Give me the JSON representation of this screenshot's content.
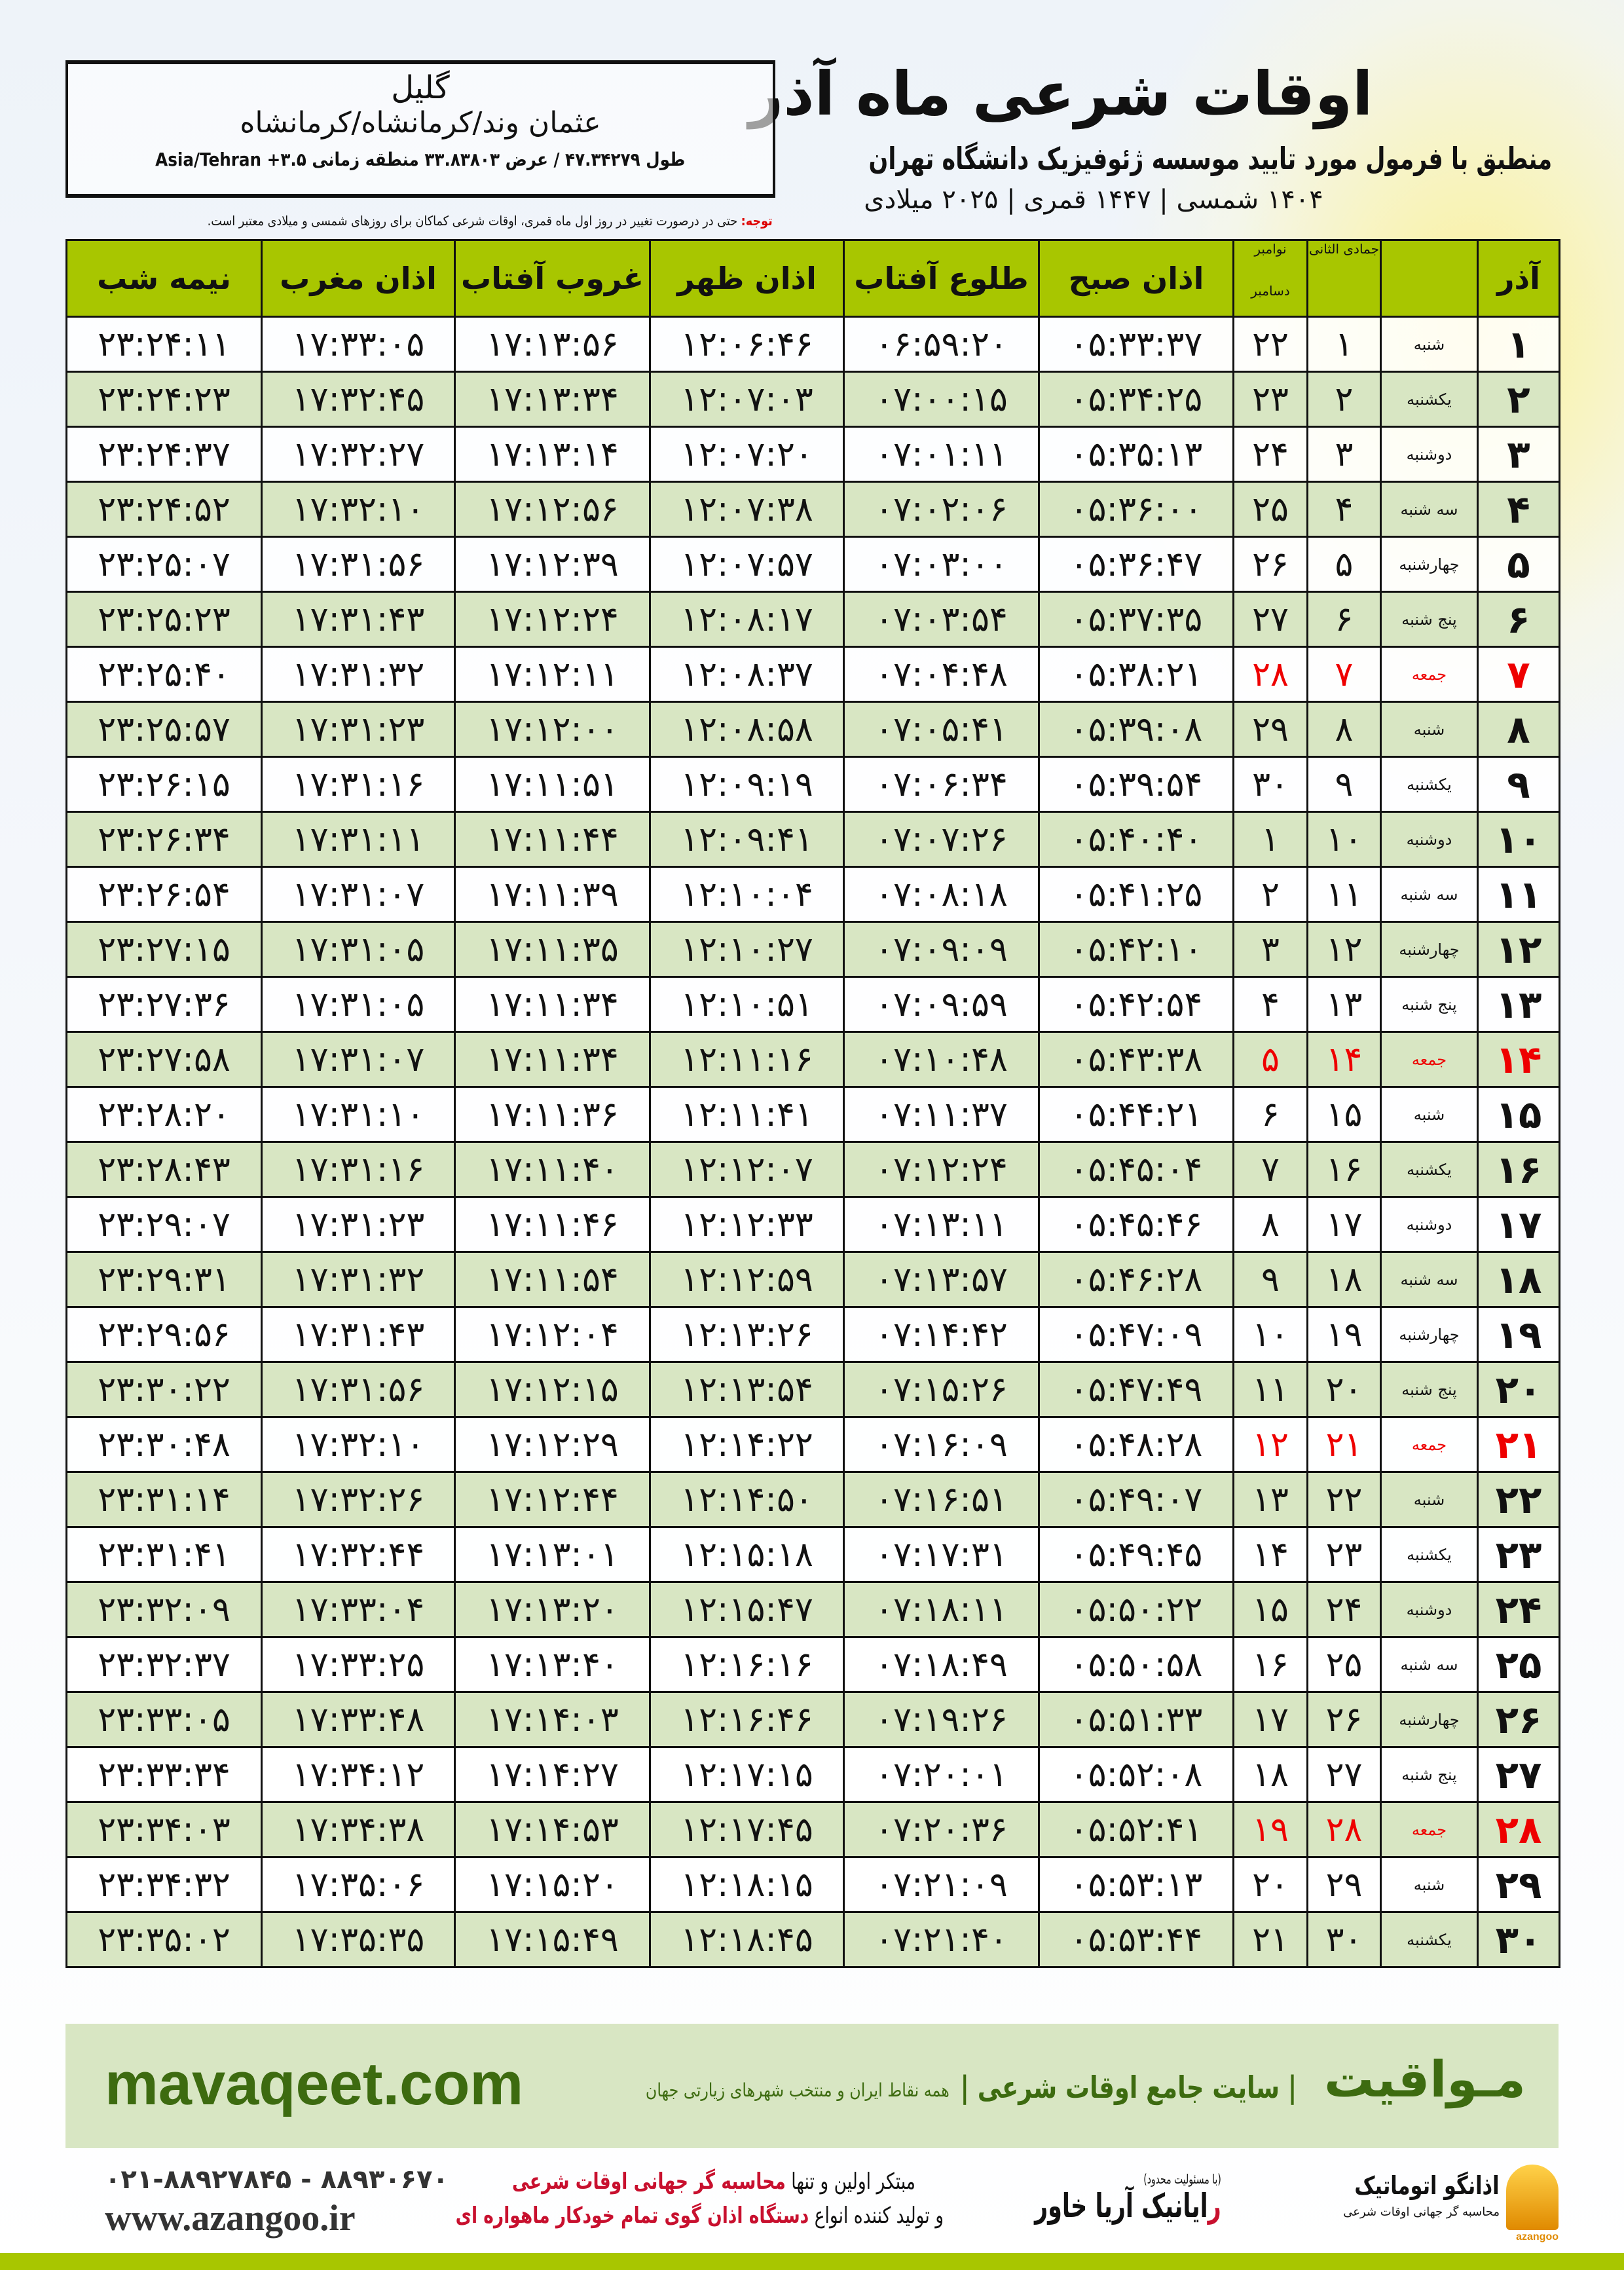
{
  "header": {
    "title": "اوقات شرعی ماه آذر",
    "subtitle": "منطبق با فرمول مورد تایید موسسه ژئوفیزیک دانشگاه تهران",
    "years": "۱۴۰۴ شمسی | ۱۴۴۷ قمری | ۲۰۲۵ میلادی"
  },
  "location": {
    "city": "گلیل",
    "region": "عثمان وند/کرمانشاه/کرمانشاه",
    "coords": "طول ۴۷.۳۴۲۷۹ / عرض ۳۳.۸۳۸۰۳ منطقه زمانی ۳.۵+ Asia/Tehran"
  },
  "note": {
    "label": "توجه:",
    "text": " حتی در درصورت تغییر در روز اول ماه قمری، اوقات شرعی کماکان برای روزهای شمسی و میلادی معتبر است."
  },
  "colors": {
    "header_green": "#a8c600",
    "row_green": "#d8e6c3",
    "holiday_red": "#e00000",
    "brand_green": "#3d6b10"
  },
  "table": {
    "headers": {
      "shamsi": "آذر",
      "weekday": "",
      "qamari": "جمادی الثانی",
      "miladi_top": "نوامبر",
      "miladi_bottom": "دسامبر",
      "fajr": "اذان صبح",
      "sunrise": "طلوع آفتاب",
      "dhuhr": "اذان ظهر",
      "sunset": "غروب آفتاب",
      "maghrib": "اذان مغرب",
      "midnight": "نیمه شب"
    },
    "rows": [
      [
        "۱",
        "شنبه",
        "۱",
        "۲۲",
        "۰۵:۳۳:۳۷",
        "۰۶:۵۹:۲۰",
        "۱۲:۰۶:۴۶",
        "۱۷:۱۳:۵۶",
        "۱۷:۳۳:۰۵",
        "۲۳:۲۴:۱۱",
        false
      ],
      [
        "۲",
        "یکشنبه",
        "۲",
        "۲۳",
        "۰۵:۳۴:۲۵",
        "۰۷:۰۰:۱۵",
        "۱۲:۰۷:۰۳",
        "۱۷:۱۳:۳۴",
        "۱۷:۳۲:۴۵",
        "۲۳:۲۴:۲۳",
        false
      ],
      [
        "۳",
        "دوشنبه",
        "۳",
        "۲۴",
        "۰۵:۳۵:۱۳",
        "۰۷:۰۱:۱۱",
        "۱۲:۰۷:۲۰",
        "۱۷:۱۳:۱۴",
        "۱۷:۳۲:۲۷",
        "۲۳:۲۴:۳۷",
        false
      ],
      [
        "۴",
        "سه شنبه",
        "۴",
        "۲۵",
        "۰۵:۳۶:۰۰",
        "۰۷:۰۲:۰۶",
        "۱۲:۰۷:۳۸",
        "۱۷:۱۲:۵۶",
        "۱۷:۳۲:۱۰",
        "۲۳:۲۴:۵۲",
        false
      ],
      [
        "۵",
        "چهارشنبه",
        "۵",
        "۲۶",
        "۰۵:۳۶:۴۷",
        "۰۷:۰۳:۰۰",
        "۱۲:۰۷:۵۷",
        "۱۷:۱۲:۳۹",
        "۱۷:۳۱:۵۶",
        "۲۳:۲۵:۰۷",
        false
      ],
      [
        "۶",
        "پنج شنبه",
        "۶",
        "۲۷",
        "۰۵:۳۷:۳۵",
        "۰۷:۰۳:۵۴",
        "۱۲:۰۸:۱۷",
        "۱۷:۱۲:۲۴",
        "۱۷:۳۱:۴۳",
        "۲۳:۲۵:۲۳",
        false
      ],
      [
        "۷",
        "جمعه",
        "۷",
        "۲۸",
        "۰۵:۳۸:۲۱",
        "۰۷:۰۴:۴۸",
        "۱۲:۰۸:۳۷",
        "۱۷:۱۲:۱۱",
        "۱۷:۳۱:۳۲",
        "۲۳:۲۵:۴۰",
        true
      ],
      [
        "۸",
        "شنبه",
        "۸",
        "۲۹",
        "۰۵:۳۹:۰۸",
        "۰۷:۰۵:۴۱",
        "۱۲:۰۸:۵۸",
        "۱۷:۱۲:۰۰",
        "۱۷:۳۱:۲۳",
        "۲۳:۲۵:۵۷",
        false
      ],
      [
        "۹",
        "یکشنبه",
        "۹",
        "۳۰",
        "۰۵:۳۹:۵۴",
        "۰۷:۰۶:۳۴",
        "۱۲:۰۹:۱۹",
        "۱۷:۱۱:۵۱",
        "۱۷:۳۱:۱۶",
        "۲۳:۲۶:۱۵",
        false
      ],
      [
        "۱۰",
        "دوشنبه",
        "۱۰",
        "۱",
        "۰۵:۴۰:۴۰",
        "۰۷:۰۷:۲۶",
        "۱۲:۰۹:۴۱",
        "۱۷:۱۱:۴۴",
        "۱۷:۳۱:۱۱",
        "۲۳:۲۶:۳۴",
        false
      ],
      [
        "۱۱",
        "سه شنبه",
        "۱۱",
        "۲",
        "۰۵:۴۱:۲۵",
        "۰۷:۰۸:۱۸",
        "۱۲:۱۰:۰۴",
        "۱۷:۱۱:۳۹",
        "۱۷:۳۱:۰۷",
        "۲۳:۲۶:۵۴",
        false
      ],
      [
        "۱۲",
        "چهارشنبه",
        "۱۲",
        "۳",
        "۰۵:۴۲:۱۰",
        "۰۷:۰۹:۰۹",
        "۱۲:۱۰:۲۷",
        "۱۷:۱۱:۳۵",
        "۱۷:۳۱:۰۵",
        "۲۳:۲۷:۱۵",
        false
      ],
      [
        "۱۳",
        "پنج شنبه",
        "۱۳",
        "۴",
        "۰۵:۴۲:۵۴",
        "۰۷:۰۹:۵۹",
        "۱۲:۱۰:۵۱",
        "۱۷:۱۱:۳۴",
        "۱۷:۳۱:۰۵",
        "۲۳:۲۷:۳۶",
        false
      ],
      [
        "۱۴",
        "جمعه",
        "۱۴",
        "۵",
        "۰۵:۴۳:۳۸",
        "۰۷:۱۰:۴۸",
        "۱۲:۱۱:۱۶",
        "۱۷:۱۱:۳۴",
        "۱۷:۳۱:۰۷",
        "۲۳:۲۷:۵۸",
        true
      ],
      [
        "۱۵",
        "شنبه",
        "۱۵",
        "۶",
        "۰۵:۴۴:۲۱",
        "۰۷:۱۱:۳۷",
        "۱۲:۱۱:۴۱",
        "۱۷:۱۱:۳۶",
        "۱۷:۳۱:۱۰",
        "۲۳:۲۸:۲۰",
        false
      ],
      [
        "۱۶",
        "یکشنبه",
        "۱۶",
        "۷",
        "۰۵:۴۵:۰۴",
        "۰۷:۱۲:۲۴",
        "۱۲:۱۲:۰۷",
        "۱۷:۱۱:۴۰",
        "۱۷:۳۱:۱۶",
        "۲۳:۲۸:۴۳",
        false
      ],
      [
        "۱۷",
        "دوشنبه",
        "۱۷",
        "۸",
        "۰۵:۴۵:۴۶",
        "۰۷:۱۳:۱۱",
        "۱۲:۱۲:۳۳",
        "۱۷:۱۱:۴۶",
        "۱۷:۳۱:۲۳",
        "۲۳:۲۹:۰۷",
        false
      ],
      [
        "۱۸",
        "سه شنبه",
        "۱۸",
        "۹",
        "۰۵:۴۶:۲۸",
        "۰۷:۱۳:۵۷",
        "۱۲:۱۲:۵۹",
        "۱۷:۱۱:۵۴",
        "۱۷:۳۱:۳۲",
        "۲۳:۲۹:۳۱",
        false
      ],
      [
        "۱۹",
        "چهارشنبه",
        "۱۹",
        "۱۰",
        "۰۵:۴۷:۰۹",
        "۰۷:۱۴:۴۲",
        "۱۲:۱۳:۲۶",
        "۱۷:۱۲:۰۴",
        "۱۷:۳۱:۴۳",
        "۲۳:۲۹:۵۶",
        false
      ],
      [
        "۲۰",
        "پنج شنبه",
        "۲۰",
        "۱۱",
        "۰۵:۴۷:۴۹",
        "۰۷:۱۵:۲۶",
        "۱۲:۱۳:۵۴",
        "۱۷:۱۲:۱۵",
        "۱۷:۳۱:۵۶",
        "۲۳:۳۰:۲۲",
        false
      ],
      [
        "۲۱",
        "جمعه",
        "۲۱",
        "۱۲",
        "۰۵:۴۸:۲۸",
        "۰۷:۱۶:۰۹",
        "۱۲:۱۴:۲۲",
        "۱۷:۱۲:۲۹",
        "۱۷:۳۲:۱۰",
        "۲۳:۳۰:۴۸",
        true
      ],
      [
        "۲۲",
        "شنبه",
        "۲۲",
        "۱۳",
        "۰۵:۴۹:۰۷",
        "۰۷:۱۶:۵۱",
        "۱۲:۱۴:۵۰",
        "۱۷:۱۲:۴۴",
        "۱۷:۳۲:۲۶",
        "۲۳:۳۱:۱۴",
        false
      ],
      [
        "۲۳",
        "یکشنبه",
        "۲۳",
        "۱۴",
        "۰۵:۴۹:۴۵",
        "۰۷:۱۷:۳۱",
        "۱۲:۱۵:۱۸",
        "۱۷:۱۳:۰۱",
        "۱۷:۳۲:۴۴",
        "۲۳:۳۱:۴۱",
        false
      ],
      [
        "۲۴",
        "دوشنبه",
        "۲۴",
        "۱۵",
        "۰۵:۵۰:۲۲",
        "۰۷:۱۸:۱۱",
        "۱۲:۱۵:۴۷",
        "۱۷:۱۳:۲۰",
        "۱۷:۳۳:۰۴",
        "۲۳:۳۲:۰۹",
        false
      ],
      [
        "۲۵",
        "سه شنبه",
        "۲۵",
        "۱۶",
        "۰۵:۵۰:۵۸",
        "۰۷:۱۸:۴۹",
        "۱۲:۱۶:۱۶",
        "۱۷:۱۳:۴۰",
        "۱۷:۳۳:۲۵",
        "۲۳:۳۲:۳۷",
        false
      ],
      [
        "۲۶",
        "چهارشنبه",
        "۲۶",
        "۱۷",
        "۰۵:۵۱:۳۳",
        "۰۷:۱۹:۲۶",
        "۱۲:۱۶:۴۶",
        "۱۷:۱۴:۰۳",
        "۱۷:۳۳:۴۸",
        "۲۳:۳۳:۰۵",
        false
      ],
      [
        "۲۷",
        "پنج شنبه",
        "۲۷",
        "۱۸",
        "۰۵:۵۲:۰۸",
        "۰۷:۲۰:۰۱",
        "۱۲:۱۷:۱۵",
        "۱۷:۱۴:۲۷",
        "۱۷:۳۴:۱۲",
        "۲۳:۳۳:۳۴",
        false
      ],
      [
        "۲۸",
        "جمعه",
        "۲۸",
        "۱۹",
        "۰۵:۵۲:۴۱",
        "۰۷:۲۰:۳۶",
        "۱۲:۱۷:۴۵",
        "۱۷:۱۴:۵۳",
        "۱۷:۳۴:۳۸",
        "۲۳:۳۴:۰۳",
        true
      ],
      [
        "۲۹",
        "شنبه",
        "۲۹",
        "۲۰",
        "۰۵:۵۳:۱۳",
        "۰۷:۲۱:۰۹",
        "۱۲:۱۸:۱۵",
        "۱۷:۱۵:۲۰",
        "۱۷:۳۵:۰۶",
        "۲۳:۳۴:۳۲",
        false
      ],
      [
        "۳۰",
        "یکشنبه",
        "۳۰",
        "۲۱",
        "۰۵:۵۳:۴۴",
        "۰۷:۲۱:۴۰",
        "۱۲:۱۸:۴۵",
        "۱۷:۱۵:۴۹",
        "۱۷:۳۵:۳۵",
        "۲۳:۳۵:۰۲",
        false
      ]
    ]
  },
  "footer": {
    "brand": "مـواقیت",
    "slogan": "| سایت جامع اوقات شرعی |",
    "tagline": "همه نقاط ایران و منتخب شهرهای زیارتی جهان",
    "site": "mavaqeet.com",
    "phones": "۰۲۱-۸۸۹۲۷۸۴۵ - ۸۸۹۳۰۶۷۰",
    "web": "www.azangoo.ir",
    "promo_line1_a": "مبتکر اولین و تنها ",
    "promo_line1_b": "محاسبه گر جهانی اوقات شرعی",
    "promo_line2_a": "و تولید کننده انواع ",
    "promo_line2_b": "دستگاه اذان گوی تمام خودکار ماهواره ای",
    "logo1_small": "(با مسئولیت محدود)",
    "logo1_r": "ر",
    "logo1_text": "ایانیک آریا خاور",
    "logo2_text": "اذانگو اتوماتیک",
    "logo2_sub": "محاسبه گر جهانی اوقات شرعی",
    "logo2_en": "azangoo"
  }
}
